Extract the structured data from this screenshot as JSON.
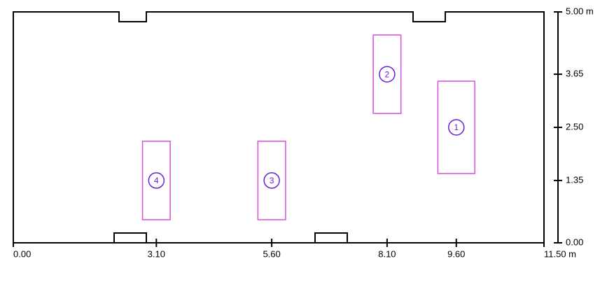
{
  "axes": {
    "xlim": [
      0,
      11.5
    ],
    "ylim": [
      0,
      5
    ],
    "xticks": [
      {
        "value": 0,
        "label": "0.00"
      },
      {
        "value": 3.1,
        "label": "3.10"
      },
      {
        "value": 5.6,
        "label": "5.60"
      },
      {
        "value": 8.1,
        "label": "8.10"
      },
      {
        "value": 9.6,
        "label": "9.60"
      },
      {
        "value": 11.5,
        "label": "11.50 m"
      }
    ],
    "yticks": [
      {
        "value": 0,
        "label": "0.00"
      },
      {
        "value": 1.35,
        "label": "1.35"
      },
      {
        "value": 2.5,
        "label": "2.50"
      },
      {
        "value": 3.65,
        "label": "3.65"
      },
      {
        "value": 5,
        "label": "5.00 m"
      }
    ]
  },
  "items": [
    {
      "label": "1",
      "x": [
        9.2,
        10.0
      ],
      "y": [
        1.5,
        3.5
      ]
    },
    {
      "label": "2",
      "x": [
        7.8,
        8.4
      ],
      "y": [
        2.8,
        4.5
      ]
    },
    {
      "label": "3",
      "x": [
        5.3,
        5.9
      ],
      "y": [
        0.5,
        2.2
      ]
    },
    {
      "label": "4",
      "x": [
        2.8,
        3.4
      ],
      "y": [
        0.5,
        2.2
      ]
    }
  ]
}
